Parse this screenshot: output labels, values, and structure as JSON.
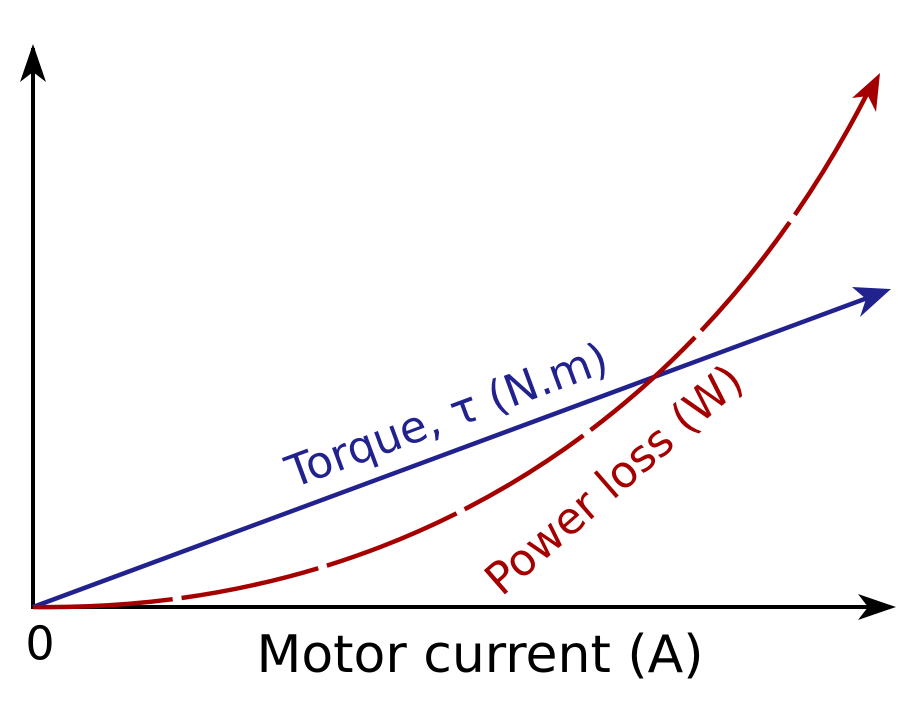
{
  "axes": {
    "origin_label": "0",
    "x_label": "Motor current (A)"
  },
  "curves": [
    {
      "label": "Torque, τ (N.m)"
    },
    {
      "label": "Power loss (W)"
    }
  ]
}
